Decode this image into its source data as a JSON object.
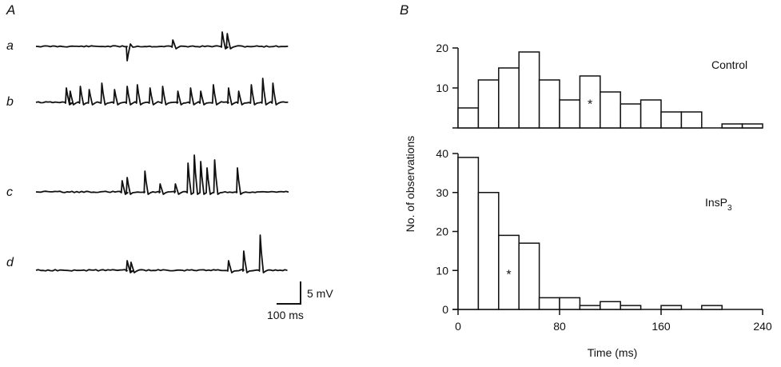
{
  "panel_a": {
    "label": "A",
    "traces": [
      {
        "label": "a",
        "events": [
          {
            "t": 360,
            "a": -18
          },
          {
            "t": 540,
            "a": 8
          },
          {
            "t": 735,
            "a": 18
          },
          {
            "t": 755,
            "a": 16
          }
        ]
      },
      {
        "label": "b",
        "events": [
          {
            "t": 120,
            "a": 18
          },
          {
            "t": 135,
            "a": 14
          },
          {
            "t": 175,
            "a": 20
          },
          {
            "t": 210,
            "a": 16
          },
          {
            "t": 260,
            "a": 24
          },
          {
            "t": 310,
            "a": 16
          },
          {
            "t": 360,
            "a": 20
          },
          {
            "t": 400,
            "a": 22
          },
          {
            "t": 450,
            "a": 18
          },
          {
            "t": 500,
            "a": 20
          },
          {
            "t": 560,
            "a": 14
          },
          {
            "t": 610,
            "a": 18
          },
          {
            "t": 650,
            "a": 14
          },
          {
            "t": 700,
            "a": 22
          },
          {
            "t": 760,
            "a": 18
          },
          {
            "t": 800,
            "a": 14
          },
          {
            "t": 850,
            "a": 22
          },
          {
            "t": 895,
            "a": 30
          },
          {
            "t": 935,
            "a": 24
          }
        ]
      },
      {
        "label": "c",
        "events": [
          {
            "t": 340,
            "a": 14
          },
          {
            "t": 360,
            "a": 18
          },
          {
            "t": 430,
            "a": 26
          },
          {
            "t": 490,
            "a": 10
          },
          {
            "t": 550,
            "a": 10
          },
          {
            "t": 600,
            "a": 36
          },
          {
            "t": 625,
            "a": 46
          },
          {
            "t": 650,
            "a": 38
          },
          {
            "t": 675,
            "a": 30
          },
          {
            "t": 705,
            "a": 40
          },
          {
            "t": 795,
            "a": 30
          }
        ]
      },
      {
        "label": "d",
        "events": [
          {
            "t": 360,
            "a": 12
          },
          {
            "t": 375,
            "a": 10
          },
          {
            "t": 760,
            "a": 12
          },
          {
            "t": 820,
            "a": 24
          },
          {
            "t": 885,
            "a": 44
          }
        ]
      }
    ],
    "scale": {
      "voltage": "5 mV",
      "time": "100 ms"
    }
  },
  "chart_data": [
    {
      "type": "bar",
      "panel": "B",
      "label": "Control",
      "x_bin_starts": [
        0,
        16,
        32,
        48,
        64,
        80,
        96,
        112,
        128,
        144,
        160,
        176,
        192,
        208,
        224
      ],
      "bin_width": 16,
      "values": [
        5,
        12,
        15,
        19,
        12,
        7,
        13,
        9,
        6,
        7,
        4,
        4,
        0,
        1,
        1
      ],
      "mean_marker_bin": 96,
      "ylim": [
        0,
        20
      ],
      "yticks": [
        "10",
        "20"
      ],
      "xlim": [
        0,
        240
      ]
    },
    {
      "type": "bar",
      "panel": "B",
      "label": "InsP",
      "label_sub": "3",
      "x_bin_starts": [
        0,
        16,
        32,
        48,
        64,
        80,
        96,
        112,
        128,
        144,
        160,
        176,
        192,
        208,
        224
      ],
      "bin_width": 16,
      "values": [
        39,
        30,
        19,
        17,
        3,
        3,
        1,
        2,
        1,
        0,
        1,
        0,
        1,
        0,
        0
      ],
      "mean_marker_bin": 32,
      "ylim": [
        0,
        40
      ],
      "yticks": [
        "0",
        "10",
        "20",
        "30",
        "40"
      ],
      "xlim": [
        0,
        240
      ],
      "xticks": [
        "0",
        "80",
        "160",
        "240"
      ]
    }
  ],
  "panel_b": {
    "label": "B",
    "ylabel": "No. of observations",
    "xlabel": "Time (ms)",
    "marker": "*"
  }
}
